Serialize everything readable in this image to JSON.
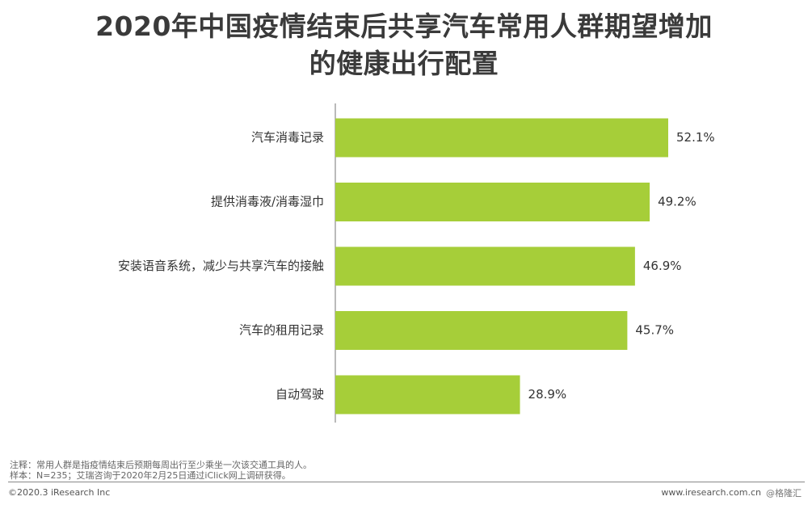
{
  "chart_data": {
    "type": "bar",
    "orientation": "horizontal",
    "title": [
      "2020年中国疫情结束后共享汽车常用人群期望增加",
      "的健康出行配置"
    ],
    "categories": [
      "汽车消毒记录",
      "提供消毒液/消毒湿巾",
      "安装语音系统，减少与共享汽车的接触",
      "汽车的租用记录",
      "自动驾驶"
    ],
    "values": [
      52.1,
      49.2,
      46.9,
      45.7,
      28.9
    ],
    "value_labels": [
      "52.1%",
      "49.2%",
      "46.9%",
      "45.7%",
      "28.9%"
    ],
    "xlim": [
      0,
      60
    ],
    "grid": false,
    "bar_color": "#a6ce39"
  },
  "notes": {
    "line1": "注释：常用人群是指疫情结束后预期每周出行至少乘坐一次该交通工具的人。",
    "line2": "样本：N=235；艾瑞咨询于2020年2月25日通过iClick网上调研获得。"
  },
  "footer": {
    "copyright": "©2020.3 iResearch Inc",
    "website": "www.iresearch.com.cn",
    "watermark": "@格隆汇"
  }
}
